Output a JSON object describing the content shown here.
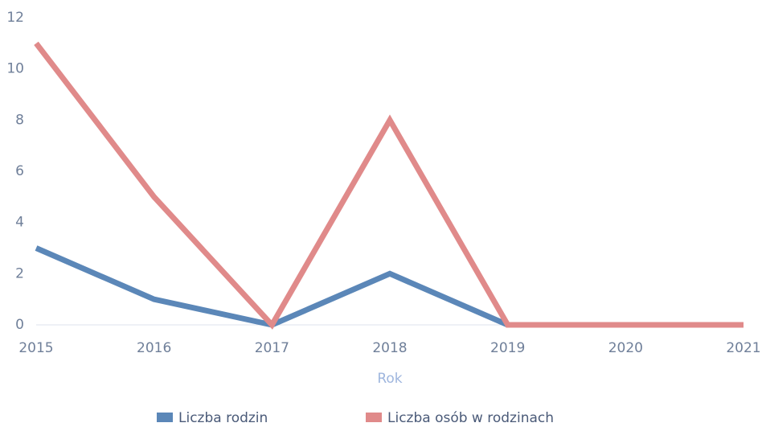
{
  "chart_data": {
    "type": "line",
    "x": [
      2015,
      2016,
      2017,
      2018,
      2019,
      2020,
      2021
    ],
    "xlim": [
      2015,
      2021
    ],
    "xticks": [
      2015,
      2016,
      2017,
      2018,
      2019,
      2020,
      2021
    ],
    "ylim": [
      0,
      12
    ],
    "yticks": [
      0,
      2,
      4,
      6,
      8,
      10,
      12
    ],
    "x_label": "Rok",
    "series": [
      {
        "name": "Liczba rodzin",
        "color": "#5b87b8",
        "values": [
          3,
          1,
          0,
          2,
          0,
          0,
          0
        ]
      },
      {
        "name": "Liczba osób w rodzinach",
        "color": "#e08a8a",
        "values": [
          11,
          5,
          0,
          8,
          0,
          0,
          0
        ]
      }
    ]
  }
}
